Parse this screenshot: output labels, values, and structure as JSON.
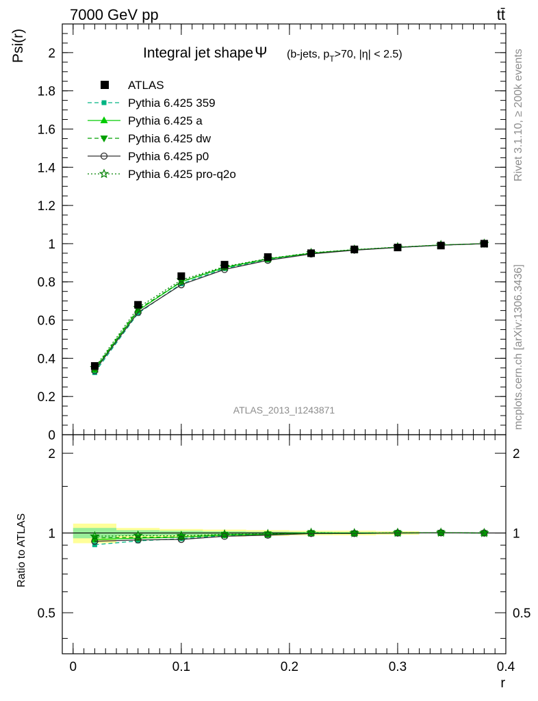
{
  "header": {
    "energy_label": "7000 GeV pp",
    "process_label": "tt̄"
  },
  "side": {
    "rivet_label": "Rivet 3.1.10, ≥ 200k events",
    "site_label": "mcplots.cern.ch [arXiv:1306.3436]"
  },
  "chart_data": {
    "type": "line",
    "title": "Integral jet shape",
    "title_symbol": "Ψ",
    "subtitle_parts": {
      "open": "(b-jets, p",
      "sub": "T",
      "close": ">70, |η| < 2.5)"
    },
    "analysis_label": "ATLAS_2013_I1243871",
    "xlabel": "r",
    "ylabel": "Psi(r)",
    "ratio_ylabel": "Ratio to ATLAS",
    "xlim": [
      -0.01,
      0.4
    ],
    "ylim": [
      0,
      2.15
    ],
    "ratio_ylim": [
      0.35,
      2.35
    ],
    "x_ticks": [
      0,
      0.1,
      0.2,
      0.3,
      0.4
    ],
    "x_tick_labels": [
      "0",
      "0.1",
      "0.2",
      "0.3",
      "0.4"
    ],
    "y_ticks": [
      0,
      0.2,
      0.4,
      0.6,
      0.8,
      1,
      1.2,
      1.4,
      1.6,
      1.8,
      2
    ],
    "y_tick_labels": [
      "0",
      "0.2",
      "0.4",
      "0.6",
      "0.8",
      "1",
      "1.2",
      "1.4",
      "1.6",
      "1.8",
      "2"
    ],
    "ratio_ticks": [
      0.5,
      1,
      2
    ],
    "ratio_tick_labels": [
      "0.5",
      "1",
      "2"
    ],
    "x": [
      0.02,
      0.06,
      0.1,
      0.14,
      0.18,
      0.22,
      0.26,
      0.3,
      0.34,
      0.38
    ],
    "bin_edges": [
      0,
      0.04,
      0.08,
      0.12,
      0.16,
      0.2,
      0.24,
      0.28,
      0.32,
      0.36,
      0.4
    ],
    "data": {
      "name": "ATLAS",
      "values": [
        0.36,
        0.68,
        0.83,
        0.89,
        0.93,
        0.95,
        0.97,
        0.98,
        0.99,
        1.0
      ]
    },
    "uncertainty_bands": {
      "total_rel": [
        0.085,
        0.045,
        0.035,
        0.03,
        0.025,
        0.02,
        0.02,
        0.015,
        0.0,
        0.0
      ],
      "stat_rel": [
        0.045,
        0.025,
        0.02,
        0.015,
        0.012,
        0.01,
        0.008,
        0.005,
        0.0,
        0.0
      ]
    },
    "series": [
      {
        "name": "Pythia 6.425 359",
        "color": "#00b482",
        "dash": "6,4",
        "marker": "square-small",
        "values": [
          0.325,
          0.635,
          0.79,
          0.87,
          0.915,
          0.948,
          0.967,
          0.98,
          0.992,
          1.0
        ]
      },
      {
        "name": "Pythia 6.425 a",
        "color": "#00cc00",
        "dash": "",
        "marker": "triangle-up",
        "values": [
          0.34,
          0.65,
          0.8,
          0.875,
          0.92,
          0.95,
          0.968,
          0.981,
          0.993,
          1.0
        ]
      },
      {
        "name": "Pythia 6.425 dw",
        "color": "#00a000",
        "dash": "6,4",
        "marker": "triangle-down",
        "values": [
          0.345,
          0.655,
          0.802,
          0.877,
          0.921,
          0.951,
          0.968,
          0.981,
          0.993,
          1.0
        ]
      },
      {
        "name": "Pythia 6.425 p0",
        "color": "#303030",
        "dash": "",
        "marker": "circle-open",
        "values": [
          0.335,
          0.64,
          0.785,
          0.865,
          0.913,
          0.946,
          0.966,
          0.98,
          0.992,
          1.0
        ]
      },
      {
        "name": "Pythia 6.425 pro-q2o",
        "color": "#008000",
        "dash": "2,3",
        "marker": "star-open",
        "values": [
          0.35,
          0.665,
          0.81,
          0.88,
          0.922,
          0.952,
          0.969,
          0.982,
          0.993,
          1.0
        ]
      }
    ],
    "colors": {
      "data": "#000000",
      "band_total": "#ffff99",
      "band_stat": "#99ee99"
    }
  }
}
